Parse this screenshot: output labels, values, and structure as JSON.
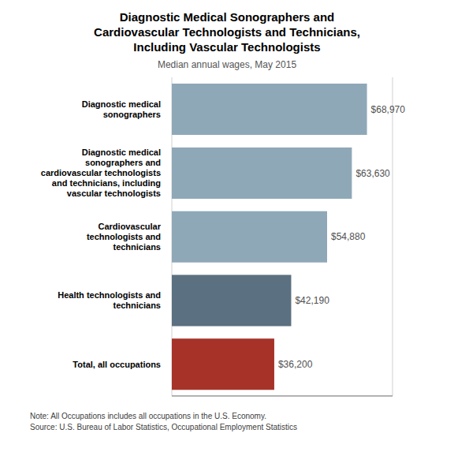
{
  "chart_data": {
    "type": "bar",
    "orientation": "horizontal",
    "title": "Diagnostic Medical Sonographers and\nCardiovascular Technologists and Technicians,\nIncluding Vascular Technologists",
    "subtitle": "Median annual wages, May 2015",
    "categories": [
      "Total, all occupations",
      "Health technologists and\ntechnicians",
      "Cardiovascular\ntechnologists and\ntechnicians",
      "Diagnostic medical\nsonographers and\ncardiovascular technologists\nand technicians, including\nvascular technologists",
      "Diagnostic medical\nsonographers"
    ],
    "values": [
      36200,
      42190,
      54880,
      63630,
      68970
    ],
    "value_labels": [
      "$36,200",
      "$42,190",
      "$54,880",
      "$63,630",
      "$68,970"
    ],
    "data_labels": true,
    "colors": [
      "#a63228",
      "#5b7080",
      "#8fa8b8",
      "#8fa8b8",
      "#8fa8b8"
    ],
    "xlim": [
      0,
      78000
    ],
    "xticks": [
      0,
      20000,
      40000,
      60000
    ],
    "grid": true,
    "tick_labels": "y",
    "annotations": [
      "Note: All Occupations includes all occupations in the U.S. Economy.",
      "Source: U.S. Bureau of Labor Statistics, Occupational Employment Statistics"
    ]
  }
}
